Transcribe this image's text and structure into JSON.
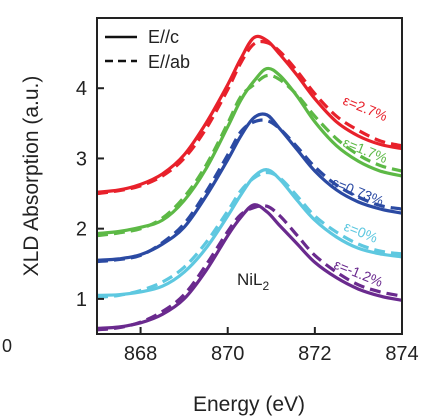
{
  "chart_data": {
    "type": "line",
    "xlabel": "Energy (eV)",
    "ylabel": "XLD Absorption (a.u.)",
    "xlim": [
      867,
      874
    ],
    "ylim": [
      0.5,
      5.0
    ],
    "x_ticks": [
      868,
      870,
      872,
      874
    ],
    "y_ticks": [
      1,
      2,
      3,
      4
    ],
    "grid": false,
    "legend": {
      "position": "top-left",
      "entries": [
        {
          "label": "E//c",
          "style": "solid"
        },
        {
          "label": "E//ab",
          "style": "dashed"
        }
      ]
    },
    "annotation": {
      "sample_label": "NiL",
      "sample_label_sub": "2"
    },
    "left_edge_glyph": "0",
    "x": [
      867.0,
      867.5,
      868.0,
      868.5,
      869.0,
      869.5,
      870.0,
      870.3,
      870.6,
      870.9,
      871.2,
      871.6,
      872.0,
      872.5,
      873.0,
      873.5,
      874.0
    ],
    "series": [
      {
        "strain": "ε=2.7%",
        "color": "#e8212b",
        "values_c": [
          2.52,
          2.55,
          2.63,
          2.78,
          3.05,
          3.5,
          4.05,
          4.42,
          4.72,
          4.68,
          4.48,
          4.18,
          3.85,
          3.52,
          3.32,
          3.2,
          3.14
        ],
        "values_ab": [
          2.5,
          2.54,
          2.61,
          2.75,
          3.0,
          3.42,
          3.98,
          4.36,
          4.63,
          4.65,
          4.52,
          4.24,
          3.92,
          3.6,
          3.4,
          3.25,
          3.18
        ]
      },
      {
        "strain": "ε=1.7%",
        "color": "#5db946",
        "values_c": [
          1.93,
          1.96,
          2.02,
          2.12,
          2.4,
          2.85,
          3.45,
          3.83,
          4.1,
          4.28,
          4.18,
          3.88,
          3.52,
          3.18,
          2.96,
          2.82,
          2.75
        ],
        "values_ab": [
          1.9,
          1.94,
          2.0,
          2.15,
          2.45,
          2.9,
          3.5,
          3.88,
          4.05,
          4.18,
          4.12,
          3.9,
          3.6,
          3.28,
          3.05,
          2.9,
          2.82
        ]
      },
      {
        "strain": "ε=0.73%",
        "color": "#2b4aa3",
        "values_c": [
          1.55,
          1.57,
          1.63,
          1.78,
          2.02,
          2.46,
          2.98,
          3.32,
          3.58,
          3.62,
          3.42,
          3.12,
          2.82,
          2.55,
          2.38,
          2.28,
          2.22
        ],
        "values_ab": [
          1.53,
          1.56,
          1.62,
          1.8,
          2.07,
          2.52,
          3.05,
          3.38,
          3.52,
          3.54,
          3.42,
          3.16,
          2.88,
          2.62,
          2.45,
          2.33,
          2.28
        ]
      },
      {
        "strain": "ε=0%",
        "color": "#5ec8e0",
        "values_c": [
          1.05,
          1.06,
          1.1,
          1.18,
          1.38,
          1.72,
          2.18,
          2.48,
          2.74,
          2.84,
          2.7,
          2.4,
          2.12,
          1.88,
          1.72,
          1.64,
          1.6
        ],
        "values_ab": [
          1.02,
          1.05,
          1.12,
          1.24,
          1.45,
          1.8,
          2.25,
          2.54,
          2.72,
          2.8,
          2.72,
          2.46,
          2.18,
          1.95,
          1.78,
          1.68,
          1.64
        ]
      },
      {
        "strain": "ε=-1.2%",
        "color": "#6a2a8e",
        "values_c": [
          0.58,
          0.6,
          0.66,
          0.78,
          1.0,
          1.4,
          1.9,
          2.16,
          2.34,
          2.24,
          2.04,
          1.78,
          1.52,
          1.3,
          1.14,
          1.04,
          0.98
        ],
        "values_ab": [
          0.56,
          0.59,
          0.67,
          0.82,
          1.06,
          1.48,
          1.96,
          2.2,
          2.3,
          2.32,
          2.18,
          1.9,
          1.62,
          1.38,
          1.2,
          1.1,
          1.04
        ]
      }
    ]
  }
}
